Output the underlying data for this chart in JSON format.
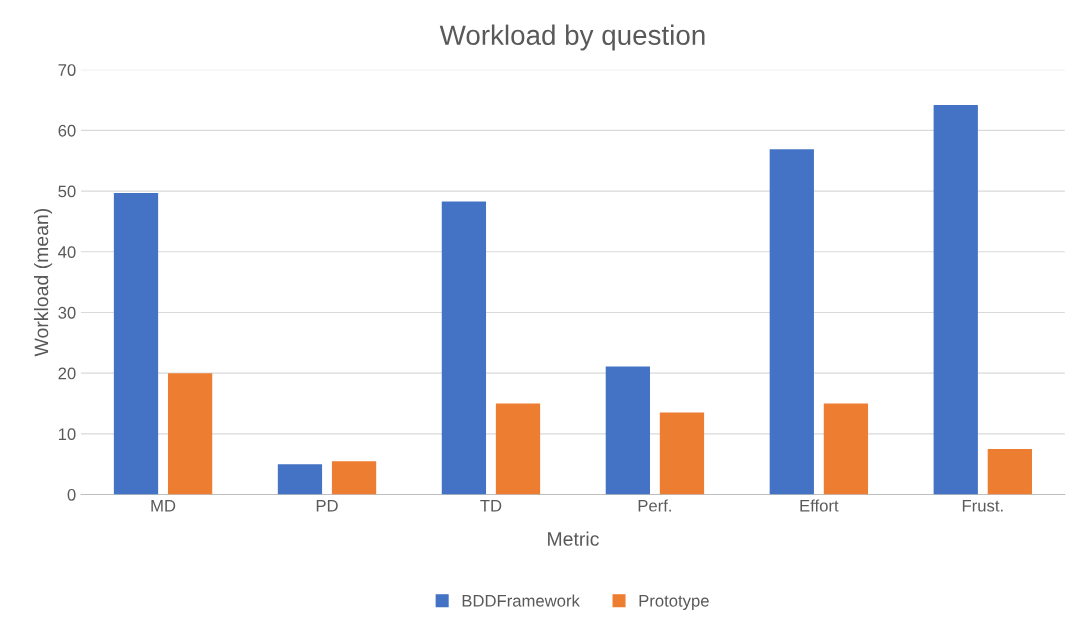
{
  "chart_data": {
    "type": "bar",
    "title": "Workload by question",
    "xlabel": "Metric",
    "ylabel": "Workload (mean)",
    "categories": [
      "MD",
      "PD",
      "TD",
      "Perf.",
      "Effort",
      "Frust."
    ],
    "series": [
      {
        "name": "BDDFramework",
        "color": "#4472c4",
        "values": [
          49.7,
          5.0,
          48.3,
          21.1,
          56.9,
          64.2
        ]
      },
      {
        "name": "Prototype",
        "color": "#ed7d31",
        "values": [
          20.0,
          5.5,
          15.0,
          13.5,
          15.0,
          7.5
        ]
      }
    ],
    "ylim": [
      0,
      70
    ],
    "yticks": [
      0,
      10,
      20,
      30,
      40,
      50,
      60,
      70
    ],
    "grid": "y",
    "legend": "bottom"
  }
}
